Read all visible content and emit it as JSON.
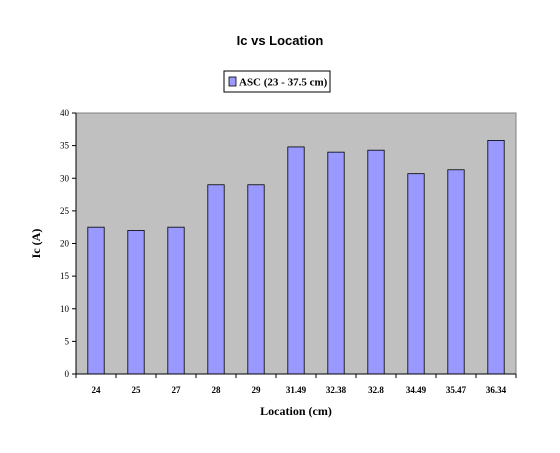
{
  "chart_data": {
    "type": "bar",
    "title": "Ic vs Location",
    "xlabel": "Location (cm)",
    "ylabel": "Ic (A)",
    "categories": [
      "24",
      "25",
      "27",
      "28",
      "29",
      "31.49",
      "32.38",
      "32.8",
      "34.49",
      "35.47",
      "36.34"
    ],
    "series": [
      {
        "name": "ASC (23 - 37.5 cm)",
        "values": [
          22.5,
          22.0,
          22.5,
          29.0,
          29.0,
          34.8,
          34.0,
          34.3,
          30.7,
          31.3,
          35.8
        ],
        "color": "#9999ff"
      }
    ],
    "ylim": [
      0,
      40
    ],
    "yticks": [
      0,
      5,
      10,
      15,
      20,
      25,
      30,
      35,
      40
    ],
    "grid": false,
    "legend_position": "top-center",
    "plot_background": "#c0c0c0"
  }
}
